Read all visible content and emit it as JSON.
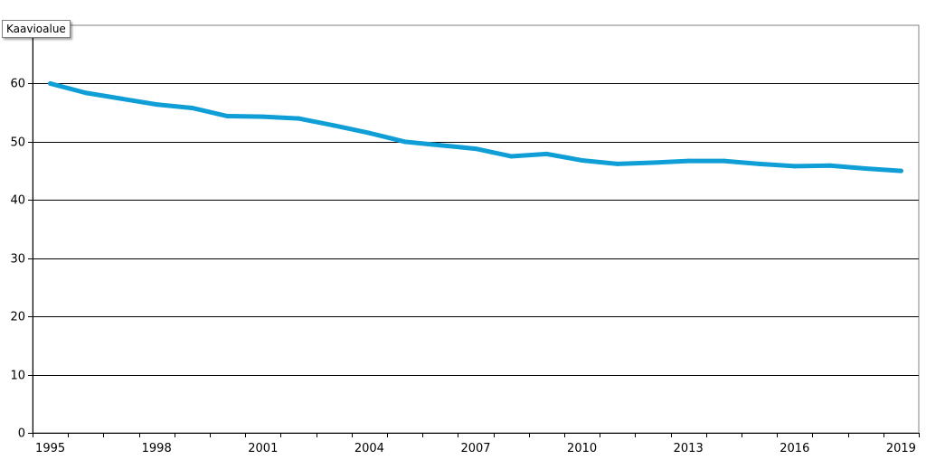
{
  "tooltip": {
    "text": "Kaavioalue"
  },
  "chart_data": {
    "type": "line",
    "x": [
      1995,
      1996,
      1997,
      1998,
      1999,
      2000,
      2001,
      2002,
      2003,
      2004,
      2005,
      2006,
      2007,
      2008,
      2009,
      2010,
      2011,
      2012,
      2013,
      2014,
      2015,
      2016,
      2017,
      2018,
      2019
    ],
    "series": [
      {
        "values": [
          60.0,
          58.4,
          57.4,
          56.4,
          55.8,
          54.4,
          54.3,
          54.0,
          52.8,
          51.5,
          50.0,
          49.4,
          48.8,
          47.5,
          47.9,
          46.8,
          46.2,
          46.4,
          46.7,
          46.7,
          46.2,
          45.8,
          45.9,
          45.4,
          45.0
        ],
        "color": "#0f9fd6"
      }
    ],
    "x_ticks": [
      "1995",
      "1998",
      "2001",
      "2004",
      "2007",
      "2010",
      "2013",
      "2016",
      "2019"
    ],
    "y_ticks": [
      "0",
      "10",
      "20",
      "30",
      "40",
      "50",
      "60"
    ],
    "xlim": [
      1995,
      2019
    ],
    "ylim": [
      0,
      70
    ],
    "grid": true,
    "title": "",
    "xlabel": "",
    "ylabel": "",
    "legend": "none"
  }
}
